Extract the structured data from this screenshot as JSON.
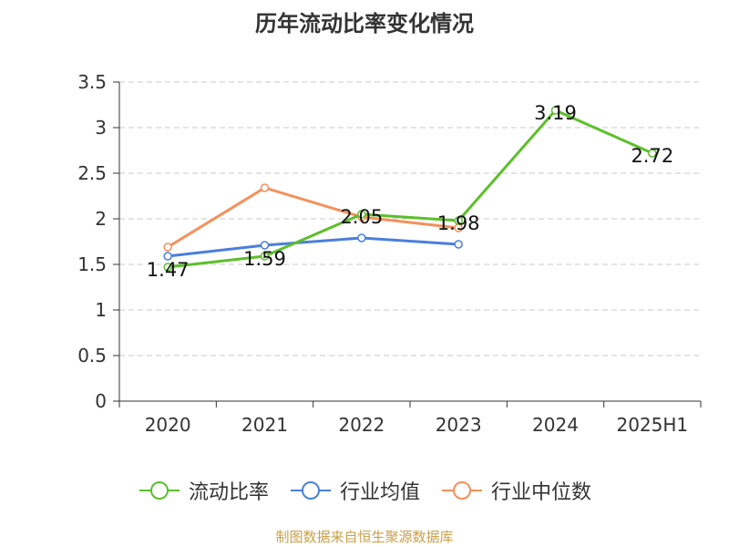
{
  "chart_data": {
    "type": "line",
    "title": "历年流动比率变化情况",
    "categories": [
      "2020",
      "2021",
      "2022",
      "2023",
      "2024",
      "2025H1"
    ],
    "ylim": [
      0,
      3.5
    ],
    "yticks": [
      "0",
      "0.5",
      "1",
      "1.5",
      "2",
      "2.5",
      "3",
      "3.5"
    ],
    "ytick_values": [
      0,
      0.5,
      1,
      1.5,
      2,
      2.5,
      3,
      3.5
    ],
    "grid": true,
    "legend_position": "bottom",
    "series": [
      {
        "name": "流动比率",
        "color": "#5cbf2a",
        "values": [
          1.47,
          1.59,
          2.05,
          1.98,
          3.19,
          2.72
        ],
        "labels": [
          "1.47",
          "1.59",
          "2.05",
          "1.98",
          "3.19",
          "2.72"
        ]
      },
      {
        "name": "行业均值",
        "color": "#4a7fdc",
        "values": [
          1.59,
          1.71,
          1.79,
          1.72,
          null,
          null
        ]
      },
      {
        "name": "行业中位数",
        "color": "#f5905a",
        "values": [
          1.69,
          2.34,
          2.02,
          1.9,
          null,
          null
        ]
      }
    ]
  },
  "source_note": "制图数据来自恒生聚源数据库"
}
